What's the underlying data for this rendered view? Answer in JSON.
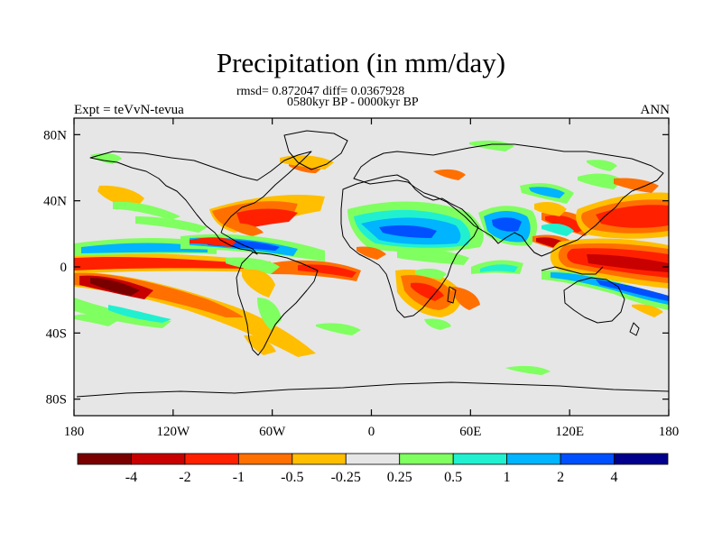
{
  "title": "Precipitation (in mm/day)",
  "stats_line": "rmsd= 0.872047 diff= 0.0367928",
  "period_line": "0580kyr BP - 0000kyr BP",
  "experiment_label": "Expt = teVvN-tevua",
  "season_label": "ANN",
  "map": {
    "variable": "precipitation anomaly",
    "units": "mm/day",
    "projection": "cylindrical equidistant",
    "lon_range": [
      -180,
      180
    ],
    "lat_range": [
      -90,
      90
    ],
    "x_ticks": [
      {
        "lon": -180,
        "label": "180"
      },
      {
        "lon": -120,
        "label": "120W"
      },
      {
        "lon": -60,
        "label": "60W"
      },
      {
        "lon": 0,
        "label": "0"
      },
      {
        "lon": 60,
        "label": "60E"
      },
      {
        "lon": 120,
        "label": "120E"
      },
      {
        "lon": 180,
        "label": "180"
      }
    ],
    "y_ticks": [
      {
        "lat": 80,
        "label": "80N"
      },
      {
        "lat": 40,
        "label": "40N"
      },
      {
        "lat": 0,
        "label": "0"
      },
      {
        "lat": -40,
        "label": "40S"
      },
      {
        "lat": -80,
        "label": "80S"
      }
    ],
    "background_color": "#e6e6e6"
  },
  "colorbar": {
    "colors": [
      "#7a0000",
      "#c80000",
      "#ff2000",
      "#ff7000",
      "#ffbe00",
      "#e6e6e6",
      "#80ff60",
      "#20f0d0",
      "#00b4ff",
      "#0050ff",
      "#00008c"
    ],
    "labels": [
      "-4",
      "-2",
      "-1",
      "-0.5",
      "-0.25",
      "0.25",
      "0.5",
      "1",
      "2",
      "4"
    ]
  }
}
